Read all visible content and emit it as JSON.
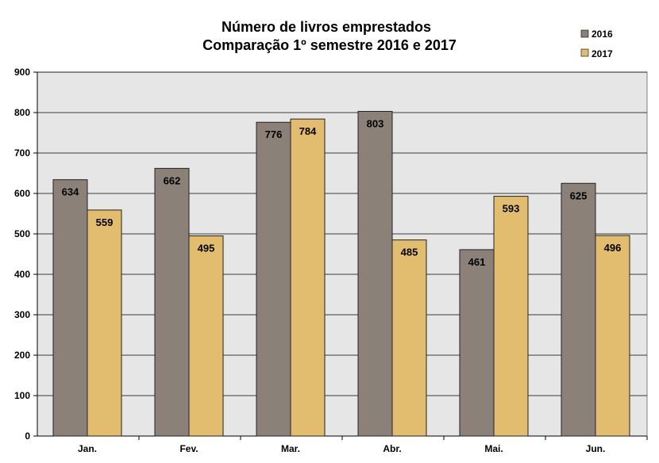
{
  "chart_data": {
    "type": "bar",
    "title": [
      "Número de livros emprestados",
      "Comparação 1º semestre 2016 e 2017"
    ],
    "categories": [
      "Jan.",
      "Fev.",
      "Mar.",
      "Abr.",
      "Mai.",
      "Jun."
    ],
    "series": [
      {
        "name": "2016",
        "values": [
          634,
          662,
          776,
          803,
          461,
          625
        ],
        "color": "#8b8179"
      },
      {
        "name": "2017",
        "values": [
          559,
          495,
          784,
          485,
          593,
          496
        ],
        "color": "#e2bd6f"
      }
    ],
    "ylim": [
      0,
      900
    ],
    "yticks": [
      0,
      100,
      200,
      300,
      400,
      500,
      600,
      700,
      800,
      900
    ],
    "grid": true,
    "plot_background": "#e6e6e6",
    "legend_position": "top-right",
    "data_labels": true
  }
}
